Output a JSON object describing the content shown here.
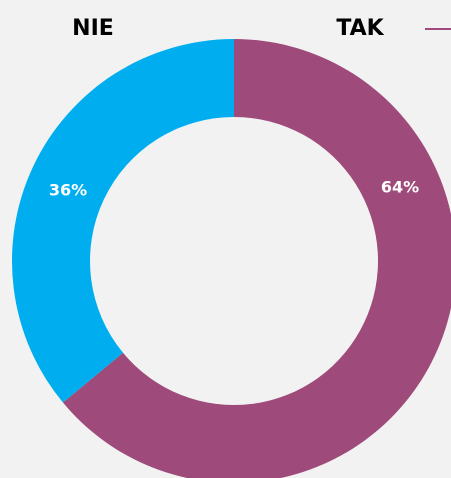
{
  "chart_data": {
    "type": "donut",
    "categories": [
      "TAK",
      "NIE"
    ],
    "values": [
      64,
      36
    ],
    "value_labels": [
      "64%",
      "36%"
    ],
    "colors": [
      "#9e4a7a",
      "#00aeef"
    ]
  }
}
